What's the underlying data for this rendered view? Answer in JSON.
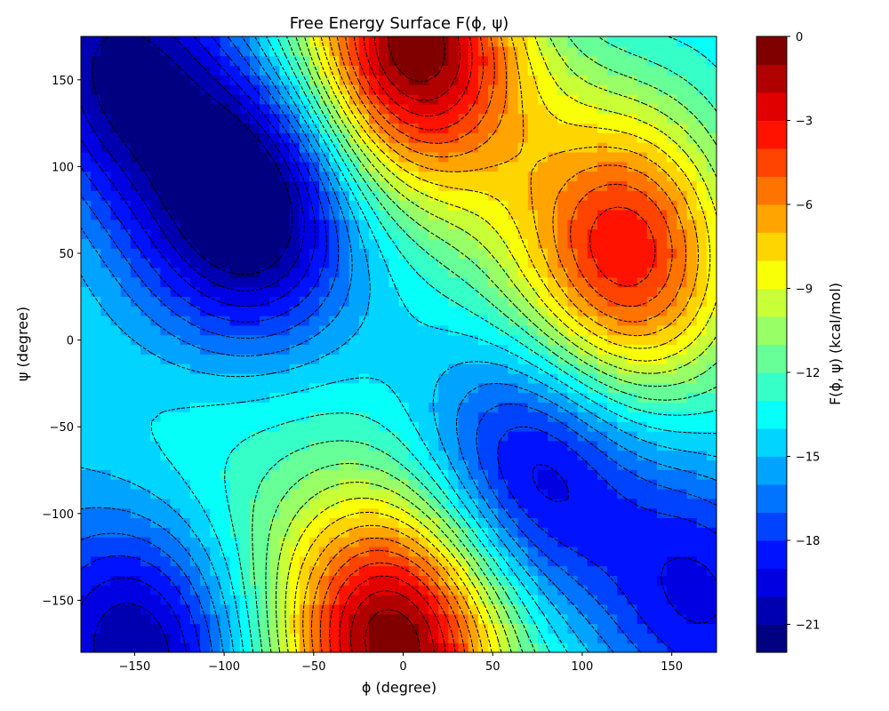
{
  "chart_data": {
    "type": "heatmap",
    "subtype": "filled-contour",
    "title": "Free Energy Surface F(ϕ, ψ)",
    "xlabel": "ϕ (degree)",
    "ylabel": "ψ (degree)",
    "xlim": [
      -180,
      175
    ],
    "ylim": [
      -180,
      175
    ],
    "xticks": [
      -150,
      -100,
      -50,
      0,
      50,
      100,
      150
    ],
    "yticks": [
      -150,
      -100,
      -50,
      0,
      50,
      100,
      150
    ],
    "xtick_labels": [
      "−150",
      "−100",
      "−50",
      "0",
      "50",
      "100",
      "150"
    ],
    "ytick_labels": [
      "−150",
      "−100",
      "−50",
      "0",
      "50",
      "100",
      "150"
    ],
    "colorbar": {
      "label": "F(ϕ, ψ) (kcal/mol)",
      "range": [
        -22,
        0
      ],
      "ticks": [
        0,
        -3,
        -6,
        -9,
        -12,
        -15,
        -18,
        -21
      ],
      "tick_labels": [
        "0",
        "−3",
        "−6",
        "−9",
        "−12",
        "−15",
        "−18",
        "−21"
      ],
      "levels": [
        -22,
        -21,
        -20,
        -19,
        -18,
        -17,
        -16,
        -15,
        -14,
        -13,
        -12,
        -11,
        -10,
        -9,
        -8,
        -7,
        -6,
        -5,
        -4,
        -3,
        -2,
        -1,
        0
      ],
      "colormap": "jet"
    },
    "contour_line_style": "dashed black",
    "minima": [
      {
        "phi": -85,
        "psi": 78,
        "F": -22
      },
      {
        "phi": -160,
        "psi": 160,
        "F": -21
      },
      {
        "phi": -150,
        "psi": -175,
        "F": -21
      },
      {
        "phi": 70,
        "psi": -72,
        "F": -19
      },
      {
        "phi": 170,
        "psi": -150,
        "F": -19
      }
    ],
    "maxima": [
      {
        "phi": 5,
        "psi": 170,
        "F": 0
      },
      {
        "phi": -5,
        "psi": -175,
        "F": 0
      },
      {
        "phi": 125,
        "psi": 45,
        "F": -4
      }
    ]
  }
}
